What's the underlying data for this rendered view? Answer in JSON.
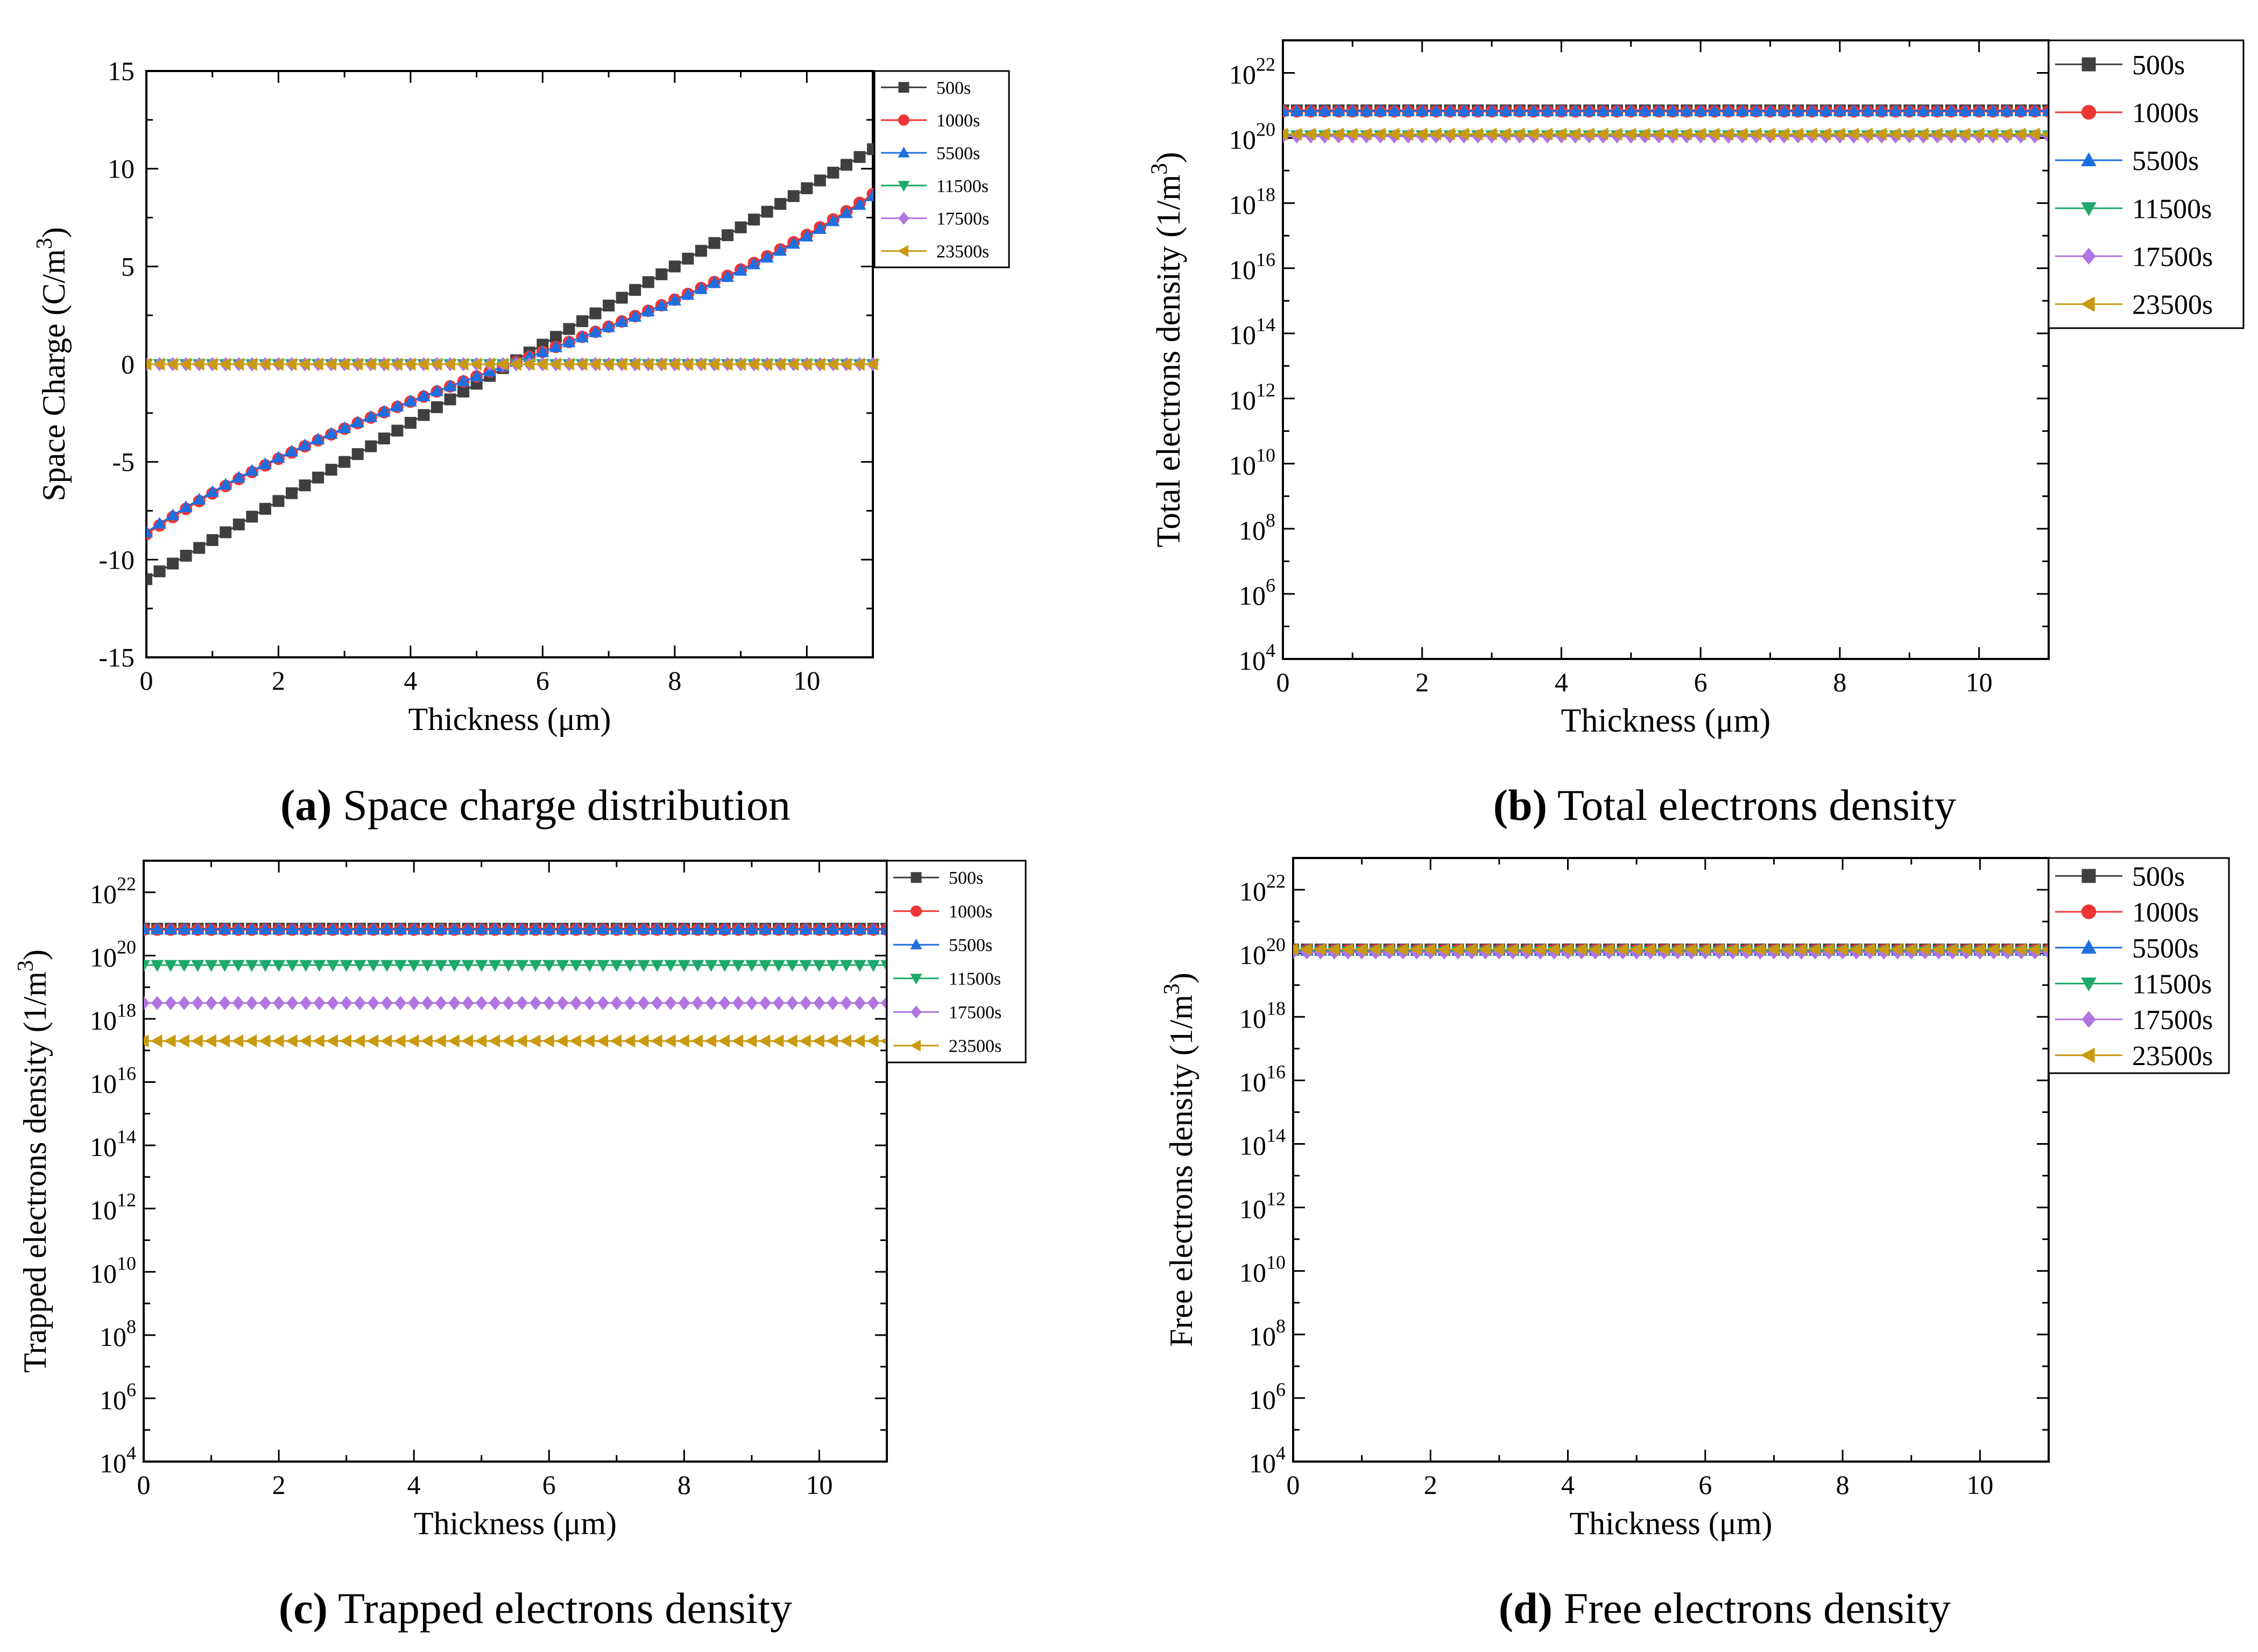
{
  "series_styles": [
    {
      "color": "#3f3f3f",
      "marker": "square"
    },
    {
      "color": "#ee3535",
      "marker": "circle"
    },
    {
      "color": "#1e6ee0",
      "marker": "triangle-up"
    },
    {
      "color": "#1ea86a",
      "marker": "triangle-down"
    },
    {
      "color": "#b075e0",
      "marker": "diamond"
    },
    {
      "color": "#c99a10",
      "marker": "triangle-left"
    }
  ],
  "captions": [
    {
      "letter": "(a)",
      "text": " Space charge distribution"
    },
    {
      "letter": "(b)",
      "text": " Total electrons density"
    },
    {
      "letter": "(c)",
      "text": " Trapped electrons density"
    },
    {
      "letter": "(d)",
      "text": " Free electrons density"
    }
  ],
  "chart_data": [
    {
      "id": "a",
      "type": "line",
      "title": "Space charge distribution",
      "xlabel": "Thickness (μm)",
      "ylabel_main": "Space Charge (C/m",
      "ylabel_sup": "3",
      "ylabel_end": ")",
      "xlim": [
        0,
        11
      ],
      "ylim": [
        -15,
        15
      ],
      "yscale": "linear",
      "xticks": [
        0,
        2,
        4,
        6,
        8,
        10
      ],
      "yticks": [
        15,
        10,
        5,
        0,
        -5,
        -10,
        -15
      ],
      "x_start": 0,
      "x_step": 0.2,
      "n_points": 56,
      "series": [
        {
          "name": "500s",
          "start": -11,
          "end": 11,
          "shape": "linear"
        },
        {
          "name": "1000s",
          "start": -8.7,
          "end": 8.7,
          "shape": "sinh"
        },
        {
          "name": "5500s",
          "start": -8.6,
          "end": 8.6,
          "shape": "sinh"
        },
        {
          "name": "11500s",
          "start": 0,
          "end": 0,
          "shape": "const"
        },
        {
          "name": "17500s",
          "start": 0,
          "end": 0,
          "shape": "const"
        },
        {
          "name": "23500s",
          "start": 0,
          "end": 0,
          "shape": "const"
        }
      ]
    },
    {
      "id": "b",
      "type": "line",
      "title": "Total electrons density",
      "xlabel": "Thickness (μm)",
      "ylabel_main": "Total electrons density (1/m",
      "ylabel_sup": "3",
      "ylabel_end": ")",
      "xlim": [
        0,
        11
      ],
      "ylim_exp": [
        4,
        23
      ],
      "yscale": "log",
      "xticks": [
        0,
        2,
        4,
        6,
        8,
        10
      ],
      "ytick_exps": [
        22,
        20,
        18,
        16,
        14,
        12,
        10,
        8,
        6,
        4
      ],
      "x_start": 0,
      "x_step": 0.2,
      "n_points": 56,
      "series": [
        {
          "name": "500s",
          "log10": 20.85,
          "shape": "const"
        },
        {
          "name": "1000s",
          "log10": 20.82,
          "shape": "const"
        },
        {
          "name": "5500s",
          "log10": 20.83,
          "shape": "const"
        },
        {
          "name": "11500s",
          "log10": 20.08,
          "shape": "const"
        },
        {
          "name": "17500s",
          "log10": 20.05,
          "shape": "const"
        },
        {
          "name": "23500s",
          "log10": 20.12,
          "shape": "const"
        }
      ]
    },
    {
      "id": "c",
      "type": "line",
      "title": "Trapped electrons density",
      "xlabel": "Thickness (μm)",
      "ylabel_main": "Trapped electrons density (1/m",
      "ylabel_sup": "3",
      "ylabel_end": ")",
      "xlim": [
        0,
        11
      ],
      "ylim_exp": [
        4,
        23
      ],
      "yscale": "log",
      "xticks": [
        0,
        2,
        4,
        6,
        8,
        10
      ],
      "ytick_exps": [
        22,
        20,
        18,
        16,
        14,
        12,
        10,
        8,
        6,
        4
      ],
      "x_start": 0,
      "x_step": 0.2,
      "n_points": 56,
      "series": [
        {
          "name": "500s",
          "log10": 20.85,
          "shape": "const"
        },
        {
          "name": "1000s",
          "log10": 20.82,
          "shape": "const"
        },
        {
          "name": "5500s",
          "log10": 20.83,
          "shape": "const"
        },
        {
          "name": "11500s",
          "log10": 19.7,
          "shape": "const"
        },
        {
          "name": "17500s",
          "log10": 18.5,
          "shape": "const"
        },
        {
          "name": "23500s",
          "log10": 17.3,
          "shape": "const"
        }
      ]
    },
    {
      "id": "d",
      "type": "line",
      "title": "Free electrons density",
      "xlabel": "Thickness (μm)",
      "ylabel_main": "Free electrons density (1/m",
      "ylabel_sup": "3",
      "ylabel_end": ")",
      "xlim": [
        0,
        11
      ],
      "ylim_exp": [
        4,
        23
      ],
      "yscale": "log",
      "xticks": [
        0,
        2,
        4,
        6,
        8,
        10
      ],
      "ytick_exps": [
        22,
        20,
        18,
        16,
        14,
        12,
        10,
        8,
        6,
        4
      ],
      "x_start": 0,
      "x_step": 0.2,
      "n_points": 56,
      "series": [
        {
          "name": "500s",
          "log10": 20.12,
          "shape": "const"
        },
        {
          "name": "1000s",
          "log10": 20.1,
          "shape": "const"
        },
        {
          "name": "5500s",
          "log10": 20.08,
          "shape": "const"
        },
        {
          "name": "11500s",
          "log10": 20.05,
          "shape": "const"
        },
        {
          "name": "17500s",
          "log10": 20.03,
          "shape": "const"
        },
        {
          "name": "23500s",
          "log10": 20.12,
          "shape": "const"
        }
      ]
    }
  ]
}
